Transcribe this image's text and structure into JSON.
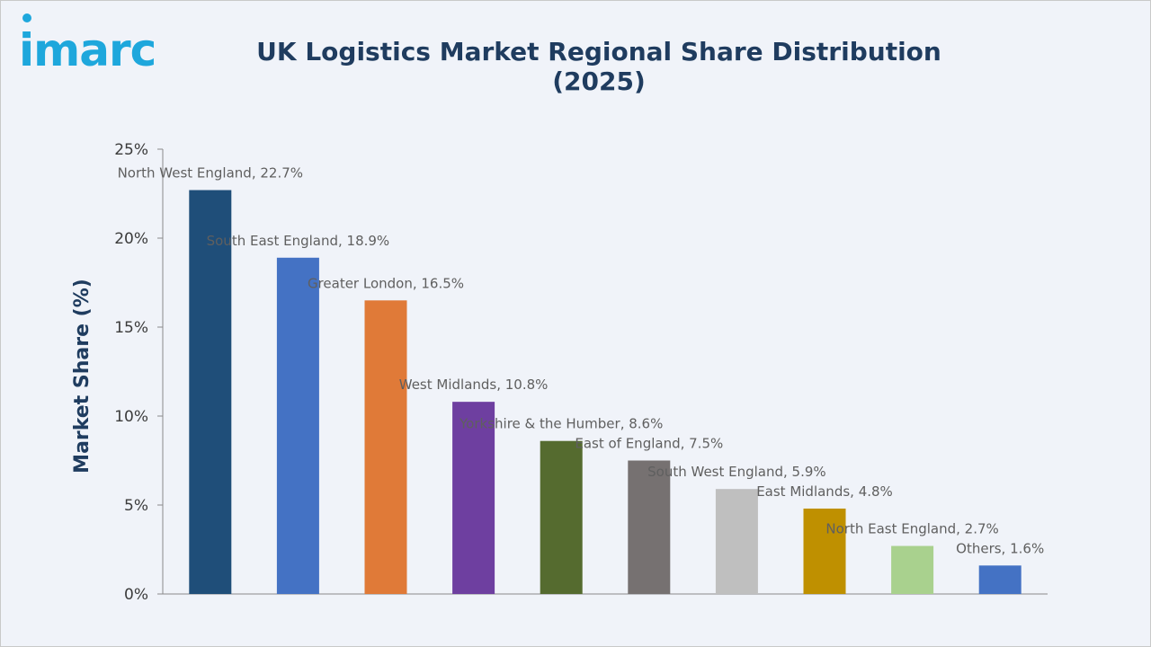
{
  "brand": {
    "logo_text": "imarc",
    "logo_color": "#1ea7dc"
  },
  "colors": {
    "title": "#1f3c5f",
    "axis": "#8a8a8a",
    "ylabel": "#1f3c5f"
  },
  "chart_data": {
    "type": "bar",
    "title": "UK Logistics Market Regional Share Distribution (2025)",
    "ylabel": "Market Share (%)",
    "xlabel": "",
    "ylim": [
      0,
      25
    ],
    "yticks": [
      0,
      5,
      10,
      15,
      20,
      25
    ],
    "ytick_labels": [
      "0%",
      "5%",
      "10%",
      "15%",
      "20%",
      "25%"
    ],
    "grid": false,
    "categories": [
      "North West England",
      "South East England",
      "Greater London",
      "West Midlands",
      "Yorkshire & the Humber",
      "East of England",
      "South West England",
      "East Midlands",
      "North East England",
      "Others"
    ],
    "values": [
      22.7,
      18.9,
      16.5,
      10.8,
      8.6,
      7.5,
      5.9,
      4.8,
      2.7,
      1.6
    ],
    "data_labels": [
      "North West England, 22.7%",
      "South East England, 18.9%",
      "Greater London, 16.5%",
      "West Midlands, 10.8%",
      "Yorkshire & the Humber, 8.6%",
      "East of England, 7.5%",
      "South West England, 5.9%",
      "East Midlands, 4.8%",
      "North East England, 2.7%",
      "Others, 1.6%"
    ],
    "bar_colors": [
      "#1f4e79",
      "#4472c4",
      "#e07a38",
      "#6e3fa0",
      "#556b2f",
      "#767171",
      "#bfbfbf",
      "#bf9000",
      "#a9d18e",
      "#4472c4"
    ]
  }
}
